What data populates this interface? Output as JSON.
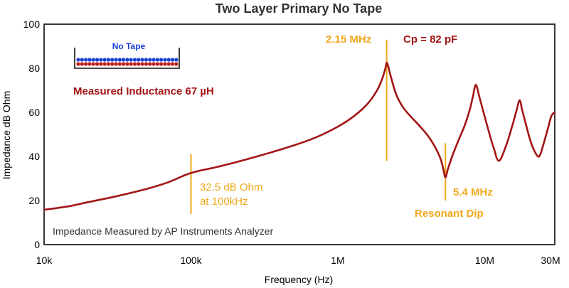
{
  "chart_data": {
    "type": "line",
    "title": "Two Layer Primary No Tape",
    "xlabel": "Frequency (Hz)",
    "ylabel": "Impedance dB Ohm",
    "x_scale": "log",
    "xlim": [
      10000,
      30000000
    ],
    "ylim": [
      0,
      100
    ],
    "grid": false,
    "x_ticks": [
      {
        "value": 10000,
        "label": "10k"
      },
      {
        "value": 100000,
        "label": "100k"
      },
      {
        "value": 1000000,
        "label": "1M"
      },
      {
        "value": 10000000,
        "label": "10M"
      },
      {
        "value": 30000000,
        "label": "30M"
      }
    ],
    "y_ticks": [
      0,
      20,
      40,
      60,
      80,
      100
    ],
    "line_color": "#a31515",
    "annotation_color": "#f0a81c",
    "series": [
      {
        "name": "",
        "x": [
          10000,
          15000,
          20000,
          30000,
          50000,
          70000,
          100000,
          150000,
          200000,
          300000,
          500000,
          700000,
          1000000,
          1300000,
          1600000,
          1850000,
          2000000,
          2100000,
          2150000,
          2200000,
          2300000,
          2500000,
          2800000,
          3200000,
          3700000,
          4200000,
          4700000,
          5000000,
          5200000,
          5400000,
          5600000,
          6000000,
          6600000,
          7300000,
          7900000,
          8300000,
          8700000,
          9200000,
          10000000,
          10800000,
          11500000,
          12500000,
          14000000,
          15500000,
          16500000,
          17300000,
          18000000,
          19000000,
          20500000,
          22000000,
          23500000,
          25000000,
          27000000,
          28500000,
          30000000
        ],
        "y": [
          15.8,
          17.5,
          19.3,
          21.7,
          25.3,
          28.3,
          32.5,
          35.2,
          37.3,
          40.5,
          45,
          48.5,
          53.5,
          58.5,
          64,
          70,
          75,
          79.5,
          82.5,
          81,
          76,
          68,
          62,
          57.5,
          53,
          48.5,
          43,
          39,
          35,
          30.5,
          34,
          40,
          47,
          54,
          61,
          67,
          72.5,
          67,
          58,
          50,
          44,
          38,
          45,
          54.5,
          61,
          65.5,
          61,
          55,
          47,
          42,
          40,
          45,
          53,
          58.5,
          60
        ]
      }
    ],
    "annotations": [
      {
        "text": "2.15 MHz",
        "x": 2150000,
        "y_top": 93,
        "y_bottom": 38
      },
      {
        "text": "Cp = 82 pF"
      },
      {
        "text": "Measured Inductance 67 µH"
      },
      {
        "text_lines": [
          "32.5 dB Ohm",
          "at 100kHz"
        ],
        "x": 100000,
        "y_top": 41,
        "y_bottom": 14
      },
      {
        "text_lines": [
          "5.4 MHz",
          "Resonant Dip"
        ],
        "x": 5400000,
        "y_top": 46,
        "y_bottom": 20
      },
      {
        "text": "Impedance Measured by AP Instruments Analyzer"
      }
    ],
    "inset": {
      "label": "No Tape",
      "rows": [
        {
          "color": "#1a3fd6",
          "count": 27
        },
        {
          "color": "#c21a1a",
          "count": 27
        }
      ]
    }
  }
}
